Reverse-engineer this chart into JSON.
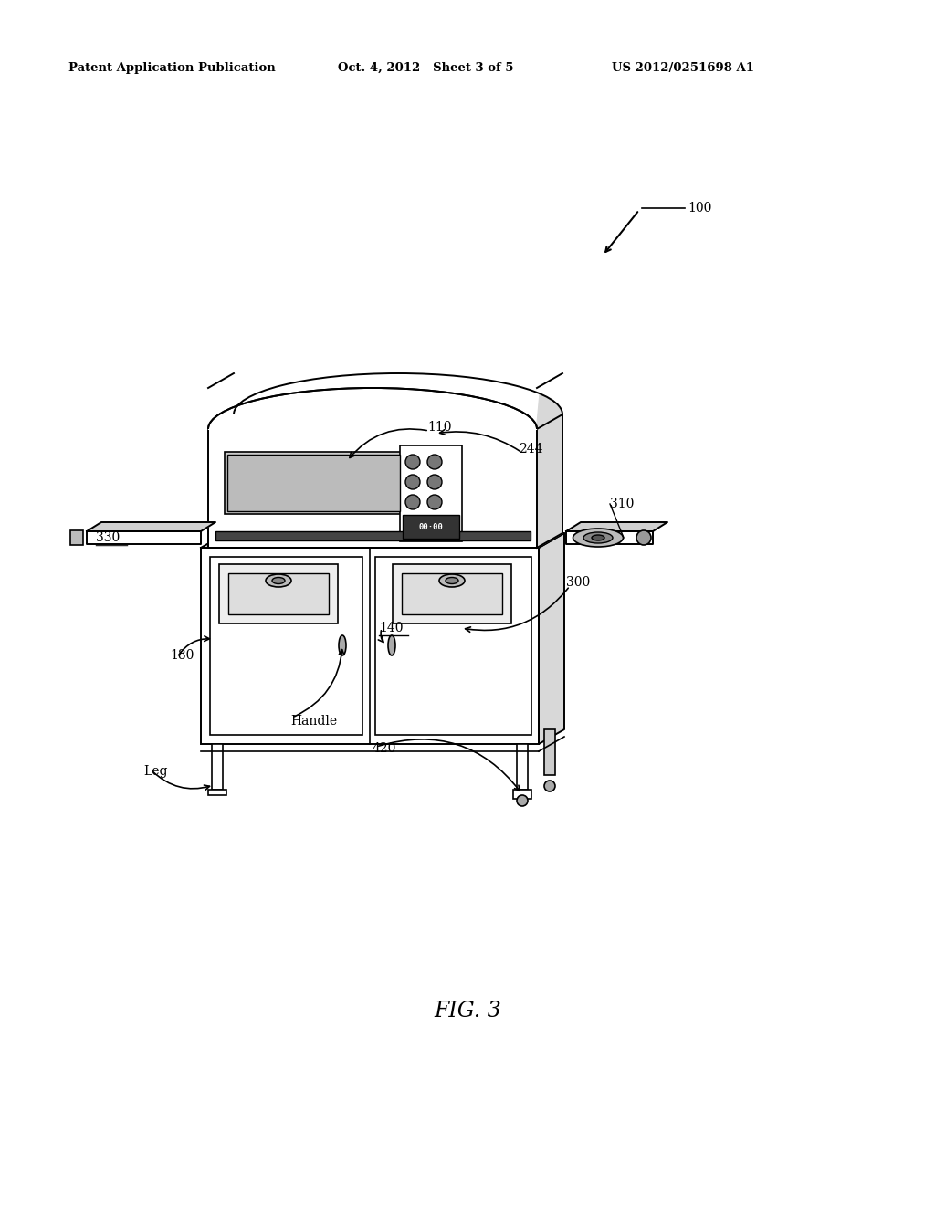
{
  "background_color": "#ffffff",
  "header_left": "Patent Application Publication",
  "header_center": "Oct. 4, 2012   Sheet 3 of 5",
  "header_right": "US 2012/0251698 A1",
  "figure_label": "FIG. 3",
  "line_color": "#000000",
  "gray_light": "#e0e0e0",
  "gray_mid": "#c0c0c0",
  "gray_dark": "#888888",
  "gray_very_dark": "#444444"
}
